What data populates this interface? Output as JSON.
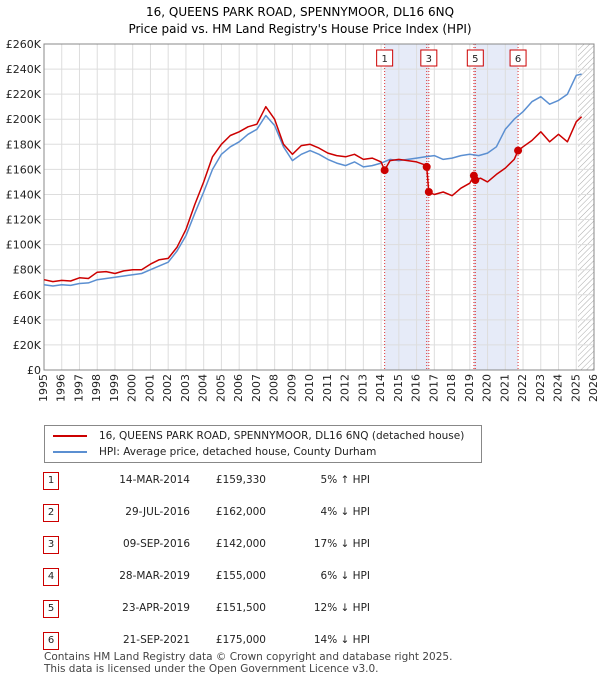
{
  "chart_data": {
    "type": "line",
    "title": "16, QUEENS PARK ROAD, SPENNYMOOR, DL16 6NQ",
    "subtitle": "Price paid vs. HM Land Registry's House Price Index (HPI)",
    "xlim": [
      1995,
      2026
    ],
    "ylim": [
      0,
      260000
    ],
    "x_ticks": [
      1995,
      1996,
      1997,
      1998,
      1999,
      2000,
      2001,
      2002,
      2003,
      2004,
      2005,
      2006,
      2007,
      2008,
      2009,
      2010,
      2011,
      2012,
      2013,
      2014,
      2015,
      2016,
      2017,
      2018,
      2019,
      2020,
      2021,
      2022,
      2023,
      2024,
      2025,
      2026
    ],
    "y_ticks": [
      {
        "value": 0,
        "label": "£0"
      },
      {
        "value": 20000,
        "label": "£20K"
      },
      {
        "value": 40000,
        "label": "£40K"
      },
      {
        "value": 60000,
        "label": "£60K"
      },
      {
        "value": 80000,
        "label": "£80K"
      },
      {
        "value": 100000,
        "label": "£100K"
      },
      {
        "value": 120000,
        "label": "£120K"
      },
      {
        "value": 140000,
        "label": "£140K"
      },
      {
        "value": 160000,
        "label": "£160K"
      },
      {
        "value": 180000,
        "label": "£180K"
      },
      {
        "value": 200000,
        "label": "£200K"
      },
      {
        "value": 220000,
        "label": "£220K"
      },
      {
        "value": 240000,
        "label": "£240K"
      },
      {
        "value": 260000,
        "label": "£260K"
      }
    ],
    "forecast_start": 2025.1,
    "shaded_ranges": [
      [
        2014.2,
        2016.69
      ],
      [
        2019.23,
        2021.72
      ]
    ],
    "series": [
      {
        "name": "16, QUEENS PARK ROAD, SPENNYMOOR, DL16 6NQ (detached house)",
        "color": "#cc0000",
        "points": [
          [
            1995.0,
            72000
          ],
          [
            1995.5,
            70500
          ],
          [
            1996.0,
            71500
          ],
          [
            1996.5,
            71000
          ],
          [
            1997.0,
            73500
          ],
          [
            1997.5,
            73000
          ],
          [
            1998.0,
            78000
          ],
          [
            1998.5,
            78500
          ],
          [
            1999.0,
            77000
          ],
          [
            1999.5,
            79000
          ],
          [
            2000.0,
            80000
          ],
          [
            2000.5,
            80000
          ],
          [
            2001.0,
            84500
          ],
          [
            2001.5,
            88000
          ],
          [
            2002.0,
            89000
          ],
          [
            2002.5,
            98000
          ],
          [
            2003.0,
            112000
          ],
          [
            2003.5,
            132000
          ],
          [
            2004.0,
            150000
          ],
          [
            2004.5,
            170000
          ],
          [
            2005.0,
            180000
          ],
          [
            2005.5,
            187000
          ],
          [
            2006.0,
            190000
          ],
          [
            2006.5,
            194000
          ],
          [
            2007.0,
            196000
          ],
          [
            2007.5,
            210000
          ],
          [
            2008.0,
            200000
          ],
          [
            2008.5,
            180000
          ],
          [
            2009.0,
            172000
          ],
          [
            2009.5,
            179000
          ],
          [
            2010.0,
            180000
          ],
          [
            2010.5,
            177000
          ],
          [
            2011.0,
            173000
          ],
          [
            2011.5,
            171000
          ],
          [
            2012.0,
            170000
          ],
          [
            2012.5,
            172000
          ],
          [
            2013.0,
            168000
          ],
          [
            2013.5,
            169000
          ],
          [
            2014.0,
            166000
          ],
          [
            2014.2,
            159330
          ],
          [
            2014.5,
            167000
          ],
          [
            2015.0,
            168000
          ],
          [
            2015.5,
            167000
          ],
          [
            2016.0,
            166000
          ],
          [
            2016.4,
            164000
          ],
          [
            2016.57,
            162000
          ],
          [
            2016.69,
            142000
          ],
          [
            2017.0,
            140000
          ],
          [
            2017.5,
            142000
          ],
          [
            2018.0,
            139000
          ],
          [
            2018.5,
            145000
          ],
          [
            2019.0,
            149000
          ],
          [
            2019.23,
            155000
          ],
          [
            2019.31,
            151500
          ],
          [
            2019.6,
            153000
          ],
          [
            2020.0,
            150000
          ],
          [
            2020.5,
            156000
          ],
          [
            2021.0,
            161000
          ],
          [
            2021.5,
            168000
          ],
          [
            2021.72,
            175000
          ],
          [
            2022.0,
            178000
          ],
          [
            2022.5,
            183000
          ],
          [
            2023.0,
            190000
          ],
          [
            2023.5,
            182000
          ],
          [
            2024.0,
            188000
          ],
          [
            2024.5,
            182000
          ],
          [
            2025.0,
            198000
          ],
          [
            2025.3,
            202000
          ]
        ]
      },
      {
        "name": "HPI: Average price, detached house, County Durham",
        "color": "#5b8fd1",
        "points": [
          [
            1995.0,
            68000
          ],
          [
            1995.5,
            67000
          ],
          [
            1996.0,
            68000
          ],
          [
            1996.5,
            67500
          ],
          [
            1997.0,
            69000
          ],
          [
            1997.5,
            69500
          ],
          [
            1998.0,
            72000
          ],
          [
            1998.5,
            73000
          ],
          [
            1999.0,
            74000
          ],
          [
            1999.5,
            75000
          ],
          [
            2000.0,
            76000
          ],
          [
            2000.5,
            77000
          ],
          [
            2001.0,
            80000
          ],
          [
            2001.5,
            83000
          ],
          [
            2002.0,
            86000
          ],
          [
            2002.5,
            95000
          ],
          [
            2003.0,
            107000
          ],
          [
            2003.5,
            125000
          ],
          [
            2004.0,
            142000
          ],
          [
            2004.5,
            160000
          ],
          [
            2005.0,
            172000
          ],
          [
            2005.5,
            178000
          ],
          [
            2006.0,
            182000
          ],
          [
            2006.5,
            188000
          ],
          [
            2007.0,
            192000
          ],
          [
            2007.5,
            203000
          ],
          [
            2008.0,
            195000
          ],
          [
            2008.5,
            178000
          ],
          [
            2009.0,
            167000
          ],
          [
            2009.5,
            172000
          ],
          [
            2010.0,
            175000
          ],
          [
            2010.5,
            172000
          ],
          [
            2011.0,
            168000
          ],
          [
            2011.5,
            165000
          ],
          [
            2012.0,
            163000
          ],
          [
            2012.5,
            166000
          ],
          [
            2013.0,
            162000
          ],
          [
            2013.5,
            163000
          ],
          [
            2014.0,
            165000
          ],
          [
            2014.5,
            168000
          ],
          [
            2015.0,
            167000
          ],
          [
            2015.5,
            168000
          ],
          [
            2016.0,
            169000
          ],
          [
            2016.5,
            170000
          ],
          [
            2017.0,
            171000
          ],
          [
            2017.5,
            168000
          ],
          [
            2018.0,
            169000
          ],
          [
            2018.5,
            171000
          ],
          [
            2019.0,
            172000
          ],
          [
            2019.5,
            171000
          ],
          [
            2020.0,
            173000
          ],
          [
            2020.5,
            178000
          ],
          [
            2021.0,
            192000
          ],
          [
            2021.5,
            200000
          ],
          [
            2022.0,
            206000
          ],
          [
            2022.5,
            214000
          ],
          [
            2023.0,
            218000
          ],
          [
            2023.5,
            212000
          ],
          [
            2024.0,
            215000
          ],
          [
            2024.5,
            220000
          ],
          [
            2025.0,
            235000
          ],
          [
            2025.3,
            236000
          ]
        ]
      }
    ],
    "markers": [
      {
        "label": "1",
        "x": 2014.2,
        "y": 159330
      },
      {
        "label": "2",
        "x": 2016.57,
        "y": 162000
      },
      {
        "label": "3",
        "x": 2016.69,
        "y": 142000
      },
      {
        "label": "4",
        "x": 2019.23,
        "y": 155000
      },
      {
        "label": "5",
        "x": 2019.31,
        "y": 151500
      },
      {
        "label": "6",
        "x": 2021.72,
        "y": 175000
      }
    ],
    "marker_boxes_shown": [
      "1",
      "3",
      "5",
      "6"
    ]
  },
  "legend": {
    "red_label": "16, QUEENS PARK ROAD, SPENNYMOOR, DL16 6NQ (detached house)",
    "blue_label": "HPI: Average price, detached house, County Durham"
  },
  "transactions": [
    {
      "num": "1",
      "date": "14-MAR-2014",
      "price": "£159,330",
      "hpi": "5% ↑ HPI"
    },
    {
      "num": "2",
      "date": "29-JUL-2016",
      "price": "£162,000",
      "hpi": "4% ↓ HPI"
    },
    {
      "num": "3",
      "date": "09-SEP-2016",
      "price": "£142,000",
      "hpi": "17% ↓ HPI"
    },
    {
      "num": "4",
      "date": "28-MAR-2019",
      "price": "£155,000",
      "hpi": "6% ↓ HPI"
    },
    {
      "num": "5",
      "date": "23-APR-2019",
      "price": "£151,500",
      "hpi": "12% ↓ HPI"
    },
    {
      "num": "6",
      "date": "21-SEP-2021",
      "price": "£175,000",
      "hpi": "14% ↓ HPI"
    }
  ],
  "footer": {
    "line1": "Contains HM Land Registry data © Crown copyright and database right 2025.",
    "line2": "This data is licensed under the Open Government Licence v3.0."
  }
}
